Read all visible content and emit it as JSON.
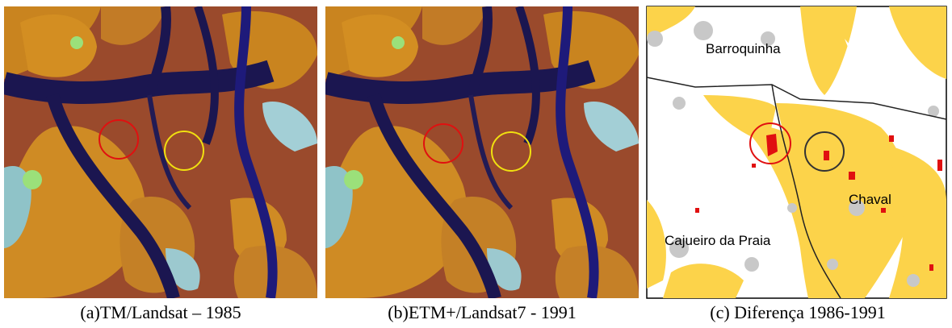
{
  "panels": [
    {
      "caption": "(a)TM/Landsat – 1985"
    },
    {
      "caption": "(b)ETM+/Landsat7 - 1991"
    },
    {
      "caption": "(c) Diferença 1986-1991",
      "labels": [
        "Barroquinha",
        "Chaval",
        "Cajueiro da Praia"
      ]
    }
  ]
}
